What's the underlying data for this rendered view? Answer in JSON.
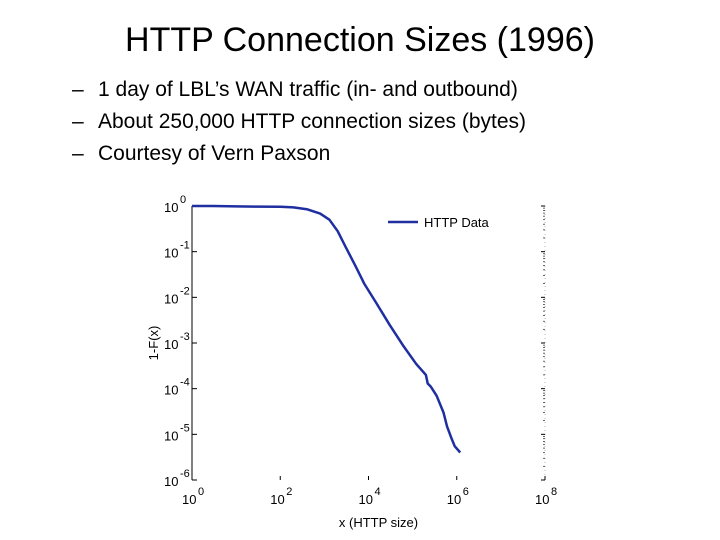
{
  "slide": {
    "title": "HTTP Connection Sizes (1996)",
    "bullets": [
      "1 day of LBL’s WAN traffic (in- and outbound)",
      "About 250,000 HTTP connection sizes (bytes)",
      "Courtesy of  Vern Paxson"
    ],
    "bullet_marker": "–"
  },
  "chart_data": {
    "type": "line",
    "xscale": "log",
    "yscale": "log",
    "xlabel": "x (HTTP size)",
    "ylabel": "1-F(x)",
    "xlim": [
      1,
      100000000
    ],
    "ylim": [
      1e-06,
      1
    ],
    "xticks": [
      {
        "base": "10",
        "exp": "0",
        "value": 1
      },
      {
        "base": "10",
        "exp": "2",
        "value": 100
      },
      {
        "base": "10",
        "exp": "4",
        "value": 10000
      },
      {
        "base": "10",
        "exp": "6",
        "value": 1000000
      },
      {
        "base": "10",
        "exp": "8",
        "value": 100000000
      }
    ],
    "yticks": [
      {
        "base": "10",
        "exp": "0",
        "value": 1
      },
      {
        "base": "10",
        "exp": "-1",
        "value": 0.1
      },
      {
        "base": "10",
        "exp": "-2",
        "value": 0.01
      },
      {
        "base": "10",
        "exp": "-3",
        "value": 0.001
      },
      {
        "base": "10",
        "exp": "-4",
        "value": 0.0001
      },
      {
        "base": "10",
        "exp": "-5",
        "value": 1e-05
      },
      {
        "base": "10",
        "exp": "-6",
        "value": 1e-06
      }
    ],
    "grid": false,
    "legend_position": "top-right",
    "series": [
      {
        "name": "HTTP Data",
        "color": "#1f2fa0",
        "points": [
          [
            1,
            1.0
          ],
          [
            3,
            1.0
          ],
          [
            10,
            0.98
          ],
          [
            30,
            0.97
          ],
          [
            100,
            0.96
          ],
          [
            200,
            0.93
          ],
          [
            400,
            0.85
          ],
          [
            800,
            0.68
          ],
          [
            1300,
            0.5
          ],
          [
            2000,
            0.28
          ],
          [
            3000,
            0.13
          ],
          [
            5000,
            0.05
          ],
          [
            8000,
            0.02
          ],
          [
            15000,
            0.0075
          ],
          [
            30000,
            0.0025
          ],
          [
            60000,
            0.0009
          ],
          [
            120000,
            0.00035
          ],
          [
            200000,
            0.0002
          ],
          [
            220000,
            0.00013
          ],
          [
            260000,
            0.00011
          ],
          [
            350000,
            7e-05
          ],
          [
            500000,
            3e-05
          ],
          [
            600000,
            1.5e-05
          ],
          [
            750000,
            8.5e-06
          ],
          [
            900000,
            5.5e-06
          ],
          [
            1200000,
            4e-06
          ]
        ]
      }
    ]
  }
}
